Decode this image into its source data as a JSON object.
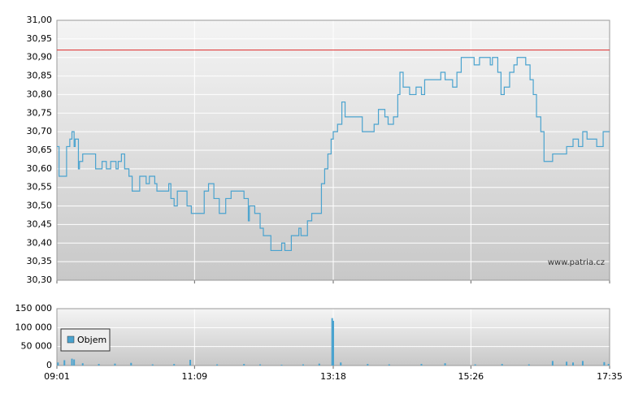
{
  "chart_data": [
    {
      "type": "line",
      "line_style": "step",
      "color": "#4aa3cf",
      "x": [
        "09:01",
        "09:03",
        "09:09",
        "09:10",
        "09:13",
        "09:15",
        "09:17",
        "09:18",
        "09:21",
        "09:22",
        "09:25",
        "09:37",
        "09:43",
        "09:47",
        "09:51",
        "09:56",
        "09:58",
        "10:01",
        "10:04",
        "10:08",
        "10:11",
        "10:18",
        "10:24",
        "10:27",
        "10:32",
        "10:34",
        "10:45",
        "10:47",
        "10:50",
        "10:53",
        "11:02",
        "11:06",
        "11:18",
        "11:22",
        "11:27",
        "11:32",
        "11:38",
        "11:43",
        "11:55",
        "11:59",
        "12:00",
        "12:05",
        "12:10",
        "12:13",
        "12:20",
        "12:30",
        "12:33",
        "12:39",
        "12:46",
        "12:48",
        "12:54",
        "12:58",
        "13:07",
        "13:10",
        "13:13",
        "13:16",
        "13:18",
        "13:22",
        "13:26",
        "13:29",
        "13:45",
        "13:56",
        "14:00",
        "14:06",
        "14:09",
        "14:14",
        "14:18",
        "14:20",
        "14:23",
        "14:29",
        "14:35",
        "14:40",
        "14:43",
        "14:58",
        "15:02",
        "15:09",
        "15:13",
        "15:17",
        "15:29",
        "15:34",
        "15:44",
        "15:46",
        "15:51",
        "15:54",
        "15:57",
        "16:02",
        "16:06",
        "16:09",
        "16:17",
        "16:21",
        "16:24",
        "16:27",
        "16:31",
        "16:34",
        "16:42",
        "16:55",
        "17:01",
        "17:06",
        "17:10",
        "17:14",
        "17:23",
        "17:29",
        "17:35"
      ],
      "values": [
        30.66,
        30.58,
        30.58,
        30.66,
        30.68,
        30.7,
        30.66,
        30.68,
        30.6,
        30.62,
        30.64,
        30.6,
        30.62,
        30.6,
        30.62,
        30.6,
        30.62,
        30.64,
        30.6,
        30.58,
        30.54,
        30.58,
        30.56,
        30.58,
        30.56,
        30.54,
        30.56,
        30.52,
        30.5,
        30.54,
        30.5,
        30.48,
        30.54,
        30.56,
        30.52,
        30.48,
        30.52,
        30.54,
        30.52,
        30.46,
        30.5,
        30.48,
        30.44,
        30.42,
        30.38,
        30.4,
        30.38,
        30.42,
        30.44,
        30.42,
        30.46,
        30.48,
        30.56,
        30.6,
        30.64,
        30.68,
        30.7,
        30.72,
        30.78,
        30.74,
        30.7,
        30.72,
        30.76,
        30.74,
        30.72,
        30.74,
        30.8,
        30.86,
        30.82,
        30.8,
        30.82,
        30.8,
        30.84,
        30.86,
        30.84,
        30.82,
        30.86,
        30.9,
        30.88,
        30.9,
        30.88,
        30.9,
        30.86,
        30.8,
        30.82,
        30.86,
        30.88,
        30.9,
        30.88,
        30.84,
        30.8,
        30.74,
        30.7,
        30.62,
        30.64,
        30.66,
        30.68,
        30.66,
        30.7,
        30.68,
        30.66,
        30.7,
        30.7
      ],
      "xlim": [
        "09:01",
        "17:35"
      ],
      "ylim": [
        30.3,
        31.0
      ],
      "yticks": [
        {
          "value": 30.3,
          "label": "30,30"
        },
        {
          "value": 30.35,
          "label": "30,35"
        },
        {
          "value": 30.4,
          "label": "30,40"
        },
        {
          "value": 30.45,
          "label": "30,45"
        },
        {
          "value": 30.5,
          "label": "30,50"
        },
        {
          "value": 30.55,
          "label": "30,55"
        },
        {
          "value": 30.6,
          "label": "30,60"
        },
        {
          "value": 30.65,
          "label": "30,65"
        },
        {
          "value": 30.7,
          "label": "30,70"
        },
        {
          "value": 30.75,
          "label": "30,75"
        },
        {
          "value": 30.8,
          "label": "30,80"
        },
        {
          "value": 30.85,
          "label": "30,85"
        },
        {
          "value": 30.9,
          "label": "30,90"
        },
        {
          "value": 30.95,
          "label": "30,95"
        },
        {
          "value": 31.0,
          "label": "31,00"
        }
      ],
      "reference_line": {
        "value": 30.92,
        "color": "#e04040"
      },
      "annotation": "www.patria.cz",
      "grid": true
    },
    {
      "type": "bar",
      "x": [
        "09:02",
        "09:08",
        "09:15",
        "09:17",
        "09:25",
        "09:40",
        "09:55",
        "10:10",
        "10:30",
        "10:50",
        "11:05",
        "11:30",
        "11:55",
        "12:10",
        "12:30",
        "12:50",
        "13:05",
        "13:17",
        "13:18",
        "13:25",
        "13:50",
        "14:10",
        "14:40",
        "15:02",
        "15:30",
        "15:55",
        "16:20",
        "16:42",
        "16:55",
        "17:01",
        "17:10",
        "17:30",
        "17:34"
      ],
      "series": [
        {
          "name": "Objem",
          "color": "#4aa3cf",
          "values": [
            8000,
            14000,
            18000,
            16000,
            6000,
            4000,
            5000,
            7000,
            3000,
            4000,
            15000,
            3000,
            4000,
            3000,
            2000,
            3000,
            5000,
            125000,
            118000,
            8000,
            4000,
            3000,
            4000,
            6000,
            3000,
            4000,
            3000,
            12000,
            10000,
            8000,
            12000,
            9000,
            4000
          ]
        }
      ],
      "xlim": [
        "09:01",
        "17:35"
      ],
      "xticks": [
        "09:01",
        "11:09",
        "13:18",
        "15:26",
        "17:35"
      ],
      "ylim": [
        0,
        150000
      ],
      "yticks": [
        0,
        {
          "value": 50000,
          "label": "50 000"
        },
        {
          "value": 100000,
          "label": "100 000"
        },
        {
          "value": 150000,
          "label": "150 000"
        }
      ],
      "grid": true,
      "legend": "upper-left"
    }
  ]
}
